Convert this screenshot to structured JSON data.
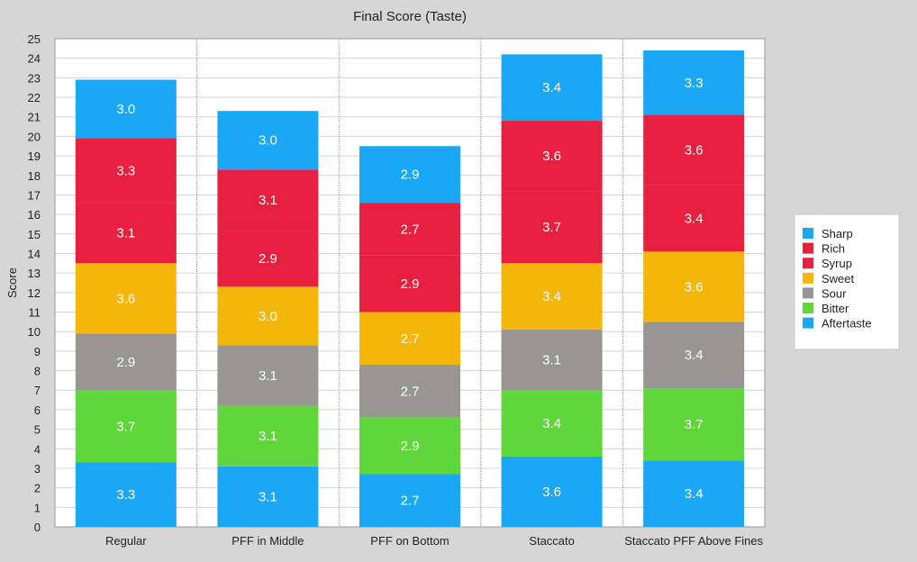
{
  "chart_data": {
    "type": "bar",
    "stacked": true,
    "title": "Final Score (Taste)",
    "xlabel": "",
    "ylabel": "Score",
    "ylim": [
      0,
      25
    ],
    "yticks": [
      0,
      1,
      2,
      3,
      4,
      5,
      6,
      7,
      8,
      9,
      10,
      11,
      12,
      13,
      14,
      15,
      16,
      17,
      18,
      19,
      20,
      21,
      22,
      23,
      24,
      25
    ],
    "grid": true,
    "legend_position": "right",
    "categories": [
      "Regular",
      "PFF in Middle",
      "PFF on Bottom",
      "Staccato",
      "Staccato PFF Above Fines"
    ],
    "series": [
      {
        "name": "Aftertaste",
        "color": "#1aa7f5",
        "values": [
          3.3,
          3.1,
          2.7,
          3.6,
          3.4
        ]
      },
      {
        "name": "Bitter",
        "color": "#5fd63a",
        "values": [
          3.7,
          3.1,
          2.9,
          3.4,
          3.7
        ]
      },
      {
        "name": "Sour",
        "color": "#989593",
        "values": [
          2.9,
          3.1,
          2.7,
          3.1,
          3.4
        ]
      },
      {
        "name": "Sweet",
        "color": "#f5b60a",
        "values": [
          3.6,
          3.0,
          2.7,
          3.4,
          3.6
        ]
      },
      {
        "name": "Syrup",
        "color": "#e8203f",
        "values": [
          3.1,
          2.9,
          2.9,
          3.7,
          3.4
        ]
      },
      {
        "name": "Rich",
        "color": "#e8203f",
        "values": [
          3.3,
          3.1,
          2.7,
          3.6,
          3.6
        ]
      },
      {
        "name": "Sharp",
        "color": "#1aa7f5",
        "values": [
          3.0,
          3.0,
          2.9,
          3.4,
          3.3
        ]
      }
    ],
    "legend": [
      "Sharp",
      "Rich",
      "Syrup",
      "Sweet",
      "Sour",
      "Bitter",
      "Aftertaste"
    ]
  }
}
